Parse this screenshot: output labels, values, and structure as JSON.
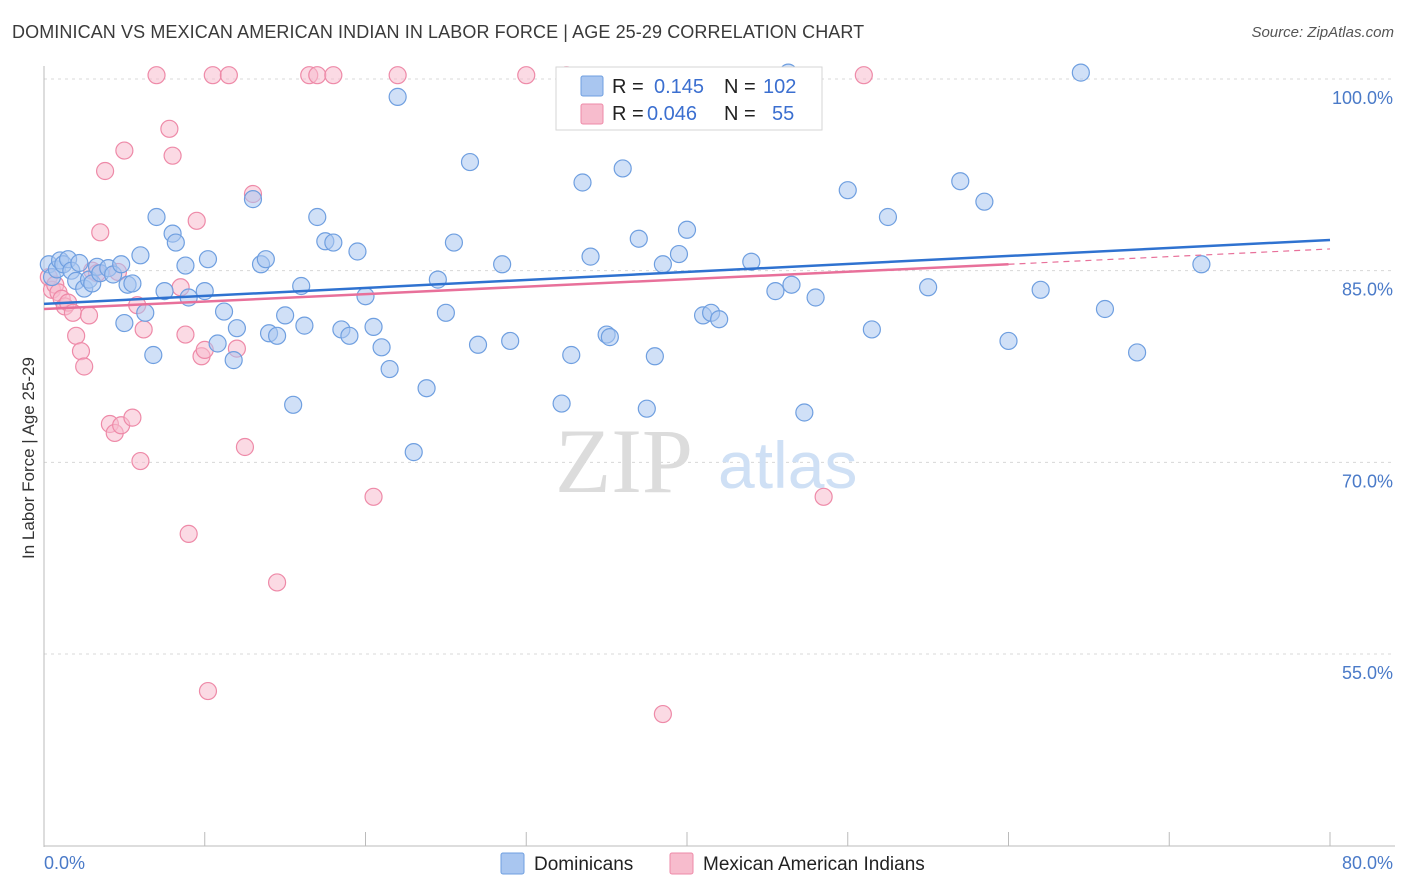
{
  "title": "DOMINICAN VS MEXICAN AMERICAN INDIAN IN LABOR FORCE | AGE 25-29 CORRELATION CHART",
  "source": "Source: ZipAtlas.com",
  "watermark": {
    "zip": "ZIP",
    "atlas": "atlas"
  },
  "colors": {
    "blue_fill": "#a9c6f0",
    "blue_stroke": "#6f9fe0",
    "blue_line": "#2f72d0",
    "pink_fill": "#f7bccd",
    "pink_stroke": "#ee8aa8",
    "pink_line": "#e8709a",
    "tick_text": "#4a7ac8",
    "grid": "#d8d8d8"
  },
  "legend_box": {
    "rows": [
      {
        "r_label": "R =",
        "r_value": "0.145",
        "n_label": "N =",
        "n_value": "102"
      },
      {
        "r_label": "R =",
        "r_value": "0.046",
        "n_label": "N =",
        "n_value": "55"
      }
    ]
  },
  "chart_data": {
    "type": "scatter",
    "title": "DOMINICAN VS MEXICAN AMERICAN INDIAN IN LABOR FORCE | AGE 25-29 CORRELATION CHART",
    "xlabel": "",
    "ylabel": "In Labor Force | Age 25-29",
    "xlim": [
      0,
      80
    ],
    "ylim": [
      40,
      102
    ],
    "x_tick_labels": [
      {
        "value": 0,
        "label": "0.0%"
      },
      {
        "value": 80,
        "label": "80.0%"
      }
    ],
    "y_tick_labels": [
      {
        "value": 100,
        "label": "100.0%"
      },
      {
        "value": 85,
        "label": "85.0%"
      },
      {
        "value": 70,
        "label": "70.0%"
      },
      {
        "value": 55,
        "label": "55.0%"
      }
    ],
    "grid": true,
    "legend_position": "bottom",
    "series": [
      {
        "name": "Dominicans",
        "R": 0.145,
        "N": 102,
        "trend": {
          "x": [
            0,
            80
          ],
          "y": [
            82.4,
            87.4
          ]
        },
        "points": [
          [
            0.3,
            85.5
          ],
          [
            0.5,
            84.5
          ],
          [
            0.8,
            85.1
          ],
          [
            1.0,
            85.8
          ],
          [
            1.2,
            85.5
          ],
          [
            1.5,
            85.9
          ],
          [
            1.7,
            85.0
          ],
          [
            2.0,
            84.2
          ],
          [
            2.2,
            85.6
          ],
          [
            2.5,
            83.6
          ],
          [
            2.8,
            84.3
          ],
          [
            3.0,
            84.0
          ],
          [
            3.3,
            85.3
          ],
          [
            3.5,
            84.8
          ],
          [
            4.0,
            85.2
          ],
          [
            4.3,
            84.7
          ],
          [
            4.8,
            85.5
          ],
          [
            5.0,
            80.9
          ],
          [
            5.2,
            83.9
          ],
          [
            5.5,
            84.0
          ],
          [
            6.0,
            86.2
          ],
          [
            6.3,
            81.7
          ],
          [
            6.8,
            78.4
          ],
          [
            7.0,
            89.2
          ],
          [
            7.5,
            83.4
          ],
          [
            8.0,
            87.9
          ],
          [
            8.2,
            87.2
          ],
          [
            8.8,
            85.4
          ],
          [
            9.0,
            82.9
          ],
          [
            10.0,
            83.4
          ],
          [
            10.2,
            85.9
          ],
          [
            10.8,
            79.3
          ],
          [
            11.2,
            81.8
          ],
          [
            11.8,
            78.0
          ],
          [
            12.0,
            80.5
          ],
          [
            13.0,
            90.6
          ],
          [
            13.5,
            85.5
          ],
          [
            13.8,
            85.9
          ],
          [
            14.0,
            80.1
          ],
          [
            14.5,
            79.9
          ],
          [
            15.0,
            81.5
          ],
          [
            15.5,
            74.5
          ],
          [
            16.0,
            83.8
          ],
          [
            16.2,
            80.7
          ],
          [
            17.0,
            89.2
          ],
          [
            17.5,
            87.3
          ],
          [
            18.0,
            87.2
          ],
          [
            18.5,
            80.4
          ],
          [
            19.0,
            79.9
          ],
          [
            19.5,
            86.5
          ],
          [
            20.0,
            83.0
          ],
          [
            20.5,
            80.6
          ],
          [
            21.0,
            79.0
          ],
          [
            21.5,
            77.3
          ],
          [
            22.0,
            98.6
          ],
          [
            23.0,
            70.8
          ],
          [
            23.8,
            75.8
          ],
          [
            24.5,
            84.3
          ],
          [
            25.0,
            81.7
          ],
          [
            25.5,
            87.2
          ],
          [
            26.5,
            93.5
          ],
          [
            27.0,
            79.2
          ],
          [
            28.5,
            85.5
          ],
          [
            29.0,
            79.5
          ],
          [
            32.2,
            74.6
          ],
          [
            32.8,
            78.4
          ],
          [
            33.5,
            91.9
          ],
          [
            34.0,
            86.1
          ],
          [
            35.0,
            80.0
          ],
          [
            35.2,
            79.8
          ],
          [
            36.0,
            93.0
          ],
          [
            37.0,
            87.5
          ],
          [
            37.5,
            74.2
          ],
          [
            38.0,
            78.3
          ],
          [
            38.5,
            85.5
          ],
          [
            39.5,
            86.3
          ],
          [
            40.0,
            88.2
          ],
          [
            41.0,
            81.5
          ],
          [
            41.5,
            81.7
          ],
          [
            42.0,
            81.2
          ],
          [
            44.0,
            85.7
          ],
          [
            45.5,
            83.4
          ],
          [
            46.3,
            100.5
          ],
          [
            46.5,
            83.9
          ],
          [
            47.3,
            73.9
          ],
          [
            48.0,
            82.9
          ],
          [
            50.0,
            91.3
          ],
          [
            51.5,
            80.4
          ],
          [
            52.5,
            89.2
          ],
          [
            55.0,
            83.7
          ],
          [
            57.0,
            92.0
          ],
          [
            58.5,
            90.4
          ],
          [
            60.0,
            79.5
          ],
          [
            62.0,
            83.5
          ],
          [
            64.5,
            100.5
          ],
          [
            66.0,
            82.0
          ],
          [
            68.0,
            78.6
          ],
          [
            72.0,
            85.5
          ]
        ]
      },
      {
        "name": "Mexican American Indians",
        "R": 0.046,
        "N": 55,
        "trend": {
          "x": [
            0,
            60
          ],
          "y": [
            82.0,
            85.5
          ],
          "dashed_to": {
            "x": 80,
            "y": 86.7
          }
        },
        "points": [
          [
            0.3,
            84.5
          ],
          [
            0.5,
            83.5
          ],
          [
            0.7,
            83.9
          ],
          [
            0.9,
            83.3
          ],
          [
            1.1,
            82.8
          ],
          [
            1.3,
            82.2
          ],
          [
            1.5,
            82.5
          ],
          [
            1.8,
            81.7
          ],
          [
            2.0,
            79.9
          ],
          [
            2.3,
            78.7
          ],
          [
            2.5,
            77.5
          ],
          [
            2.8,
            81.5
          ],
          [
            3.0,
            85.0
          ],
          [
            3.3,
            84.8
          ],
          [
            3.5,
            88.0
          ],
          [
            3.8,
            92.8
          ],
          [
            4.1,
            73.0
          ],
          [
            4.4,
            72.3
          ],
          [
            4.6,
            84.9
          ],
          [
            4.8,
            72.9
          ],
          [
            5.0,
            94.4
          ],
          [
            5.5,
            73.5
          ],
          [
            5.8,
            82.3
          ],
          [
            6.0,
            70.1
          ],
          [
            6.2,
            80.4
          ],
          [
            7.0,
            100.3
          ],
          [
            7.8,
            96.1
          ],
          [
            8.0,
            94.0
          ],
          [
            8.5,
            83.7
          ],
          [
            8.8,
            80.0
          ],
          [
            9.0,
            64.4
          ],
          [
            9.5,
            88.9
          ],
          [
            9.8,
            78.3
          ],
          [
            10.0,
            78.8
          ],
          [
            10.2,
            52.1
          ],
          [
            10.5,
            100.3
          ],
          [
            11.5,
            100.3
          ],
          [
            12.5,
            71.2
          ],
          [
            12.0,
            78.9
          ],
          [
            13.0,
            91.0
          ],
          [
            14.5,
            60.6
          ],
          [
            16.5,
            100.3
          ],
          [
            17.0,
            100.3
          ],
          [
            18.0,
            100.3
          ],
          [
            20.5,
            67.3
          ],
          [
            22.0,
            100.3
          ],
          [
            30.0,
            100.3
          ],
          [
            32.5,
            100.3
          ],
          [
            38.5,
            50.3
          ],
          [
            48.5,
            67.3
          ],
          [
            51.0,
            100.3
          ]
        ]
      }
    ]
  }
}
